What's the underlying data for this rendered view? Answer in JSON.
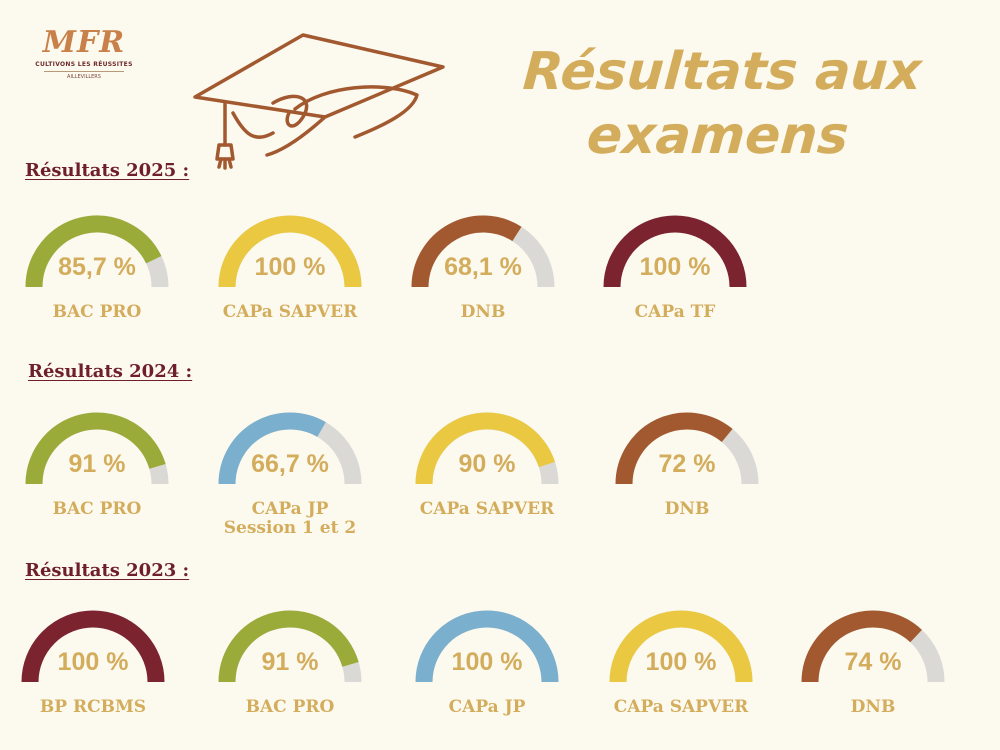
{
  "logo": {
    "text": "MFR",
    "tagline": "CULTIVONS LES RÉUSSITES",
    "place": "AILLEVILLERS"
  },
  "title_line1": "Résultats aux",
  "title_line2": "examens",
  "colors": {
    "green": "#9aab3a",
    "yellow": "#ebc842",
    "brown": "#a2592f",
    "maroon": "#7b232f",
    "blue": "#7aafcd",
    "track": "#dad9d6",
    "text_gold": "#d3ad5c",
    "heading": "#6e1f2b"
  },
  "chart_data": [
    {
      "type": "gauge",
      "title": "Résultats 2025 :",
      "items": [
        {
          "label": "BAC PRO",
          "value": 85.7,
          "value_label": "85,7 %",
          "color": "green"
        },
        {
          "label": "CAPa SAPVER",
          "value": 100,
          "value_label": "100 %",
          "color": "yellow"
        },
        {
          "label": "DNB",
          "value": 68.1,
          "value_label": "68,1 %",
          "color": "brown"
        },
        {
          "label": "CAPa TF",
          "value": 100,
          "value_label": "100 %",
          "color": "maroon"
        }
      ]
    },
    {
      "type": "gauge",
      "title": "Résultats 2024 :",
      "items": [
        {
          "label": "BAC PRO",
          "value": 91,
          "value_label": "91 %",
          "color": "green"
        },
        {
          "label": "CAPa JP\nSession 1 et 2",
          "value": 66.7,
          "value_label": "66,7 %",
          "color": "blue"
        },
        {
          "label": "CAPa SAPVER",
          "value": 90,
          "value_label": "90 %",
          "color": "yellow"
        },
        {
          "label": "DNB",
          "value": 72,
          "value_label": "72 %",
          "color": "brown"
        }
      ]
    },
    {
      "type": "gauge",
      "title": "Résultats 2023 :",
      "items": [
        {
          "label": "BP  RCBMS",
          "value": 100,
          "value_label": "100 %",
          "color": "maroon"
        },
        {
          "label": "BAC PRO",
          "value": 91,
          "value_label": "91 %",
          "color": "green"
        },
        {
          "label": "CAPa JP",
          "value": 100,
          "value_label": "100 %",
          "color": "blue"
        },
        {
          "label": "CAPa SAPVER",
          "value": 100,
          "value_label": "100 %",
          "color": "yellow"
        },
        {
          "label": "DNB",
          "value": 74,
          "value_label": "74 %",
          "color": "brown"
        }
      ]
    }
  ]
}
